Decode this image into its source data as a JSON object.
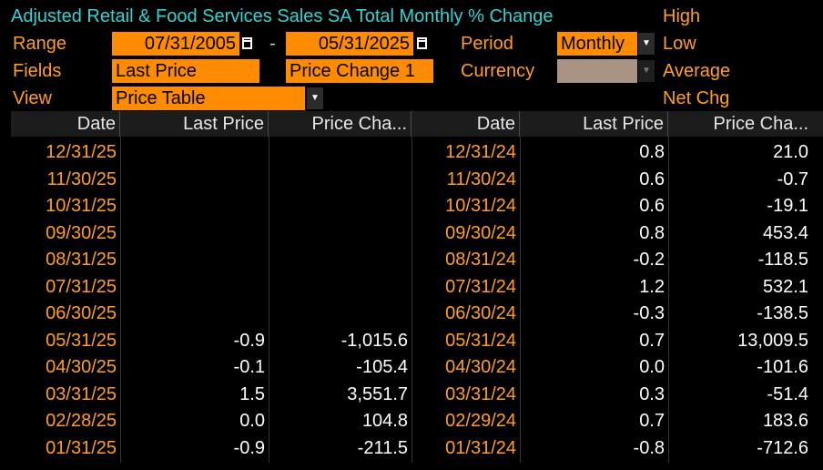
{
  "header": {
    "title": "Adjusted Retail & Food Services Sales SA Total Monthly % Change"
  },
  "controls": {
    "range_label": "Range",
    "range_start": "07/31/2005",
    "range_sep": "-",
    "range_end": "05/31/2025",
    "period_label": "Period",
    "period_value": "Monthly",
    "fields_label": "Fields",
    "field1": "Last Price",
    "field2": "Price Change 1",
    "currency_label": "Currency",
    "currency_value": "",
    "view_label": "View",
    "view_value": "Price Table"
  },
  "stats": {
    "high": "High",
    "low": "Low",
    "average": "Average",
    "net_chg": "Net Chg"
  },
  "colors": {
    "title": "#34d2d2",
    "label": "#ff9d28",
    "field_bg": "#ff8c00",
    "background": "#000000"
  },
  "table": {
    "columns": [
      "Date",
      "Last Price",
      "Price Cha...",
      "Date",
      "Last Price",
      "Price Cha..."
    ],
    "rows": [
      [
        "12/31/25",
        "",
        "",
        "12/31/24",
        "0.8",
        "21.0"
      ],
      [
        "11/30/25",
        "",
        "",
        "11/30/24",
        "0.6",
        "-0.7"
      ],
      [
        "10/31/25",
        "",
        "",
        "10/31/24",
        "0.6",
        "-19.1"
      ],
      [
        "09/30/25",
        "",
        "",
        "09/30/24",
        "0.8",
        "453.4"
      ],
      [
        "08/31/25",
        "",
        "",
        "08/31/24",
        "-0.2",
        "-118.5"
      ],
      [
        "07/31/25",
        "",
        "",
        "07/31/24",
        "1.2",
        "532.1"
      ],
      [
        "06/30/25",
        "",
        "",
        "06/30/24",
        "-0.3",
        "-138.5"
      ],
      [
        "05/31/25",
        "-0.9",
        "-1,015.6",
        "05/31/24",
        "0.7",
        "13,009.5"
      ],
      [
        "04/30/25",
        "-0.1",
        "-105.4",
        "04/30/24",
        "0.0",
        "-101.6"
      ],
      [
        "03/31/25",
        "1.5",
        "3,551.7",
        "03/31/24",
        "0.3",
        "-51.4"
      ],
      [
        "02/28/25",
        "0.0",
        "104.8",
        "02/29/24",
        "0.7",
        "183.6"
      ],
      [
        "01/31/25",
        "-0.9",
        "-211.5",
        "01/31/24",
        "-0.8",
        "-712.6"
      ]
    ]
  }
}
